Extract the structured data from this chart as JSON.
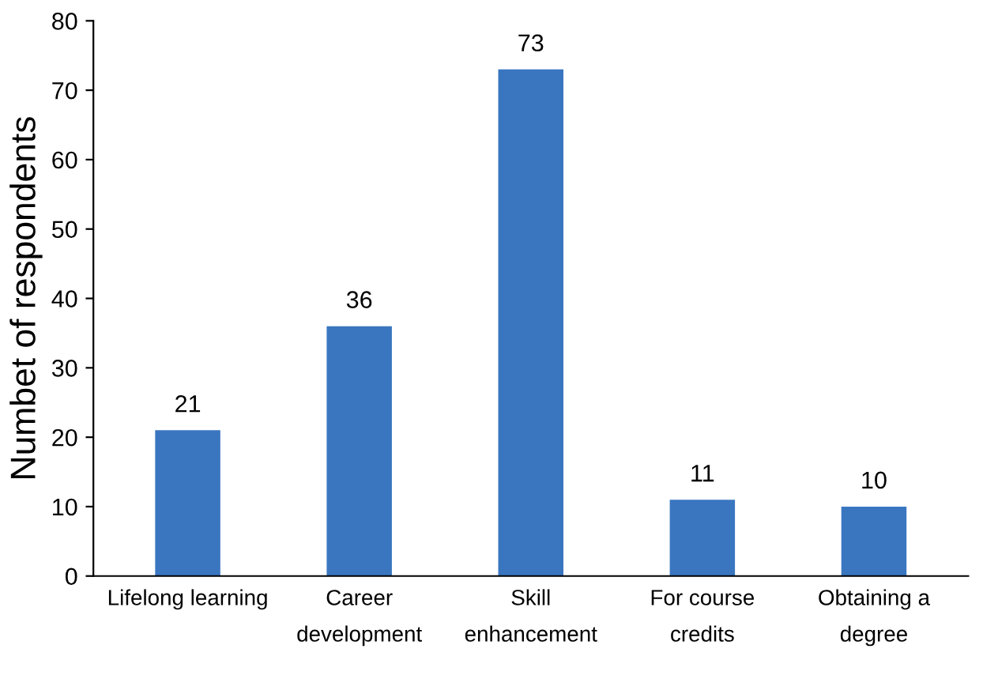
{
  "chart_data": {
    "type": "bar",
    "ylabel": "Numbet of respondents",
    "categories": [
      "Lifelong learning",
      "Career\ndevelopment",
      "Skill\nenhancement",
      "For course\ncredits",
      "Obtaining a\ndegree"
    ],
    "values": [
      21,
      36,
      73,
      11,
      10
    ],
    "color": "#3a76c0",
    "ylim": [
      0,
      80
    ],
    "yticks": [
      0,
      10,
      20,
      30,
      40,
      50,
      60,
      70,
      80
    ],
    "grid": false,
    "data_labels": true
  }
}
